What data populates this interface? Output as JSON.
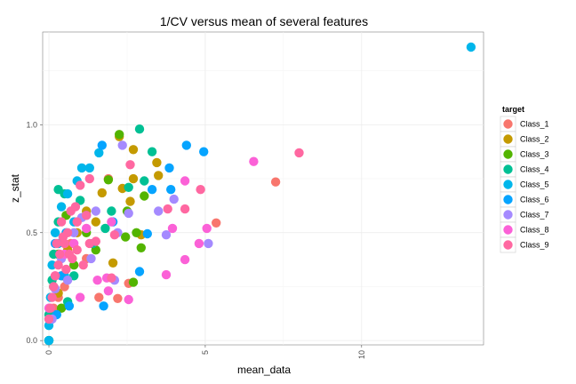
{
  "chart_data": {
    "type": "scatter",
    "title": "1/CV versus mean of several features",
    "xlabel": "mean_data",
    "ylabel": "z_stat",
    "xlim": [
      -0.2,
      13.9
    ],
    "ylim": [
      -0.02,
      1.43
    ],
    "x_ticks": [
      0,
      5,
      10
    ],
    "x_tick_labels": [
      "0",
      "5",
      "10"
    ],
    "y_ticks": [
      0.0,
      0.5,
      1.0
    ],
    "y_tick_labels": [
      "0.0",
      "0.5",
      "1.0"
    ],
    "grid": true,
    "legend_title": "target",
    "legend_position": "right",
    "series": [
      {
        "name": "Class_1",
        "color": "#F8766D",
        "points": [
          [
            7.25,
            0.735
          ],
          [
            5.35,
            0.545
          ],
          [
            2.55,
            0.265
          ],
          [
            1.6,
            0.2
          ],
          [
            2.2,
            0.195
          ],
          [
            0.4,
            0.3
          ],
          [
            0.7,
            0.45
          ],
          [
            1.2,
            0.38
          ],
          [
            0.3,
            0.2
          ],
          [
            0.9,
            0.55
          ],
          [
            0.15,
            0.15
          ],
          [
            1.9,
            0.75
          ],
          [
            0.5,
            0.25
          ]
        ]
      },
      {
        "name": "Class_2",
        "color": "#C49A00",
        "points": [
          [
            2.7,
            0.885
          ],
          [
            3.45,
            0.825
          ],
          [
            3.5,
            0.765
          ],
          [
            2.7,
            0.75
          ],
          [
            2.35,
            0.705
          ],
          [
            2.6,
            0.645
          ],
          [
            2.25,
            0.945
          ],
          [
            1.7,
            0.685
          ],
          [
            1.2,
            0.6
          ],
          [
            0.6,
            0.42
          ],
          [
            0.3,
            0.22
          ],
          [
            0.9,
            0.5
          ],
          [
            2.05,
            0.36
          ],
          [
            1.5,
            0.55
          ],
          [
            0.45,
            0.3
          ],
          [
            0.1,
            0.12
          ],
          [
            2.95,
            0.49
          ]
        ]
      },
      {
        "name": "Class_3",
        "color": "#53B400",
        "points": [
          [
            2.25,
            0.955
          ],
          [
            1.9,
            0.745
          ],
          [
            2.5,
            0.6
          ],
          [
            3.05,
            0.67
          ],
          [
            2.8,
            0.5
          ],
          [
            2.95,
            0.43
          ],
          [
            2.7,
            0.27
          ],
          [
            1.2,
            0.5
          ],
          [
            0.55,
            0.58
          ],
          [
            0.3,
            0.4
          ],
          [
            0.15,
            0.25
          ],
          [
            0.05,
            0.1
          ],
          [
            0.0,
            0.0
          ],
          [
            0.8,
            0.35
          ],
          [
            0.4,
            0.15
          ],
          [
            2.45,
            0.48
          ],
          [
            1.5,
            0.42
          ]
        ]
      },
      {
        "name": "Class_4",
        "color": "#00C094",
        "points": [
          [
            2.9,
            0.98
          ],
          [
            3.3,
            0.875
          ],
          [
            2.55,
            0.71
          ],
          [
            3.05,
            0.74
          ],
          [
            1.8,
            0.52
          ],
          [
            1.0,
            0.65
          ],
          [
            0.5,
            0.68
          ],
          [
            0.3,
            0.55
          ],
          [
            0.15,
            0.4
          ],
          [
            0.1,
            0.28
          ],
          [
            0.0,
            0.12
          ],
          [
            0.0,
            0.0
          ],
          [
            0.6,
            0.18
          ],
          [
            1.4,
            0.45
          ],
          [
            2.0,
            0.6
          ],
          [
            0.3,
            0.7
          ],
          [
            0.8,
            0.3
          ]
        ]
      },
      {
        "name": "Class_5",
        "color": "#00B6EB",
        "points": [
          [
            13.5,
            1.36
          ],
          [
            1.6,
            0.87
          ],
          [
            1.05,
            0.8
          ],
          [
            1.3,
            0.8
          ],
          [
            0.9,
            0.74
          ],
          [
            0.6,
            0.68
          ],
          [
            0.4,
            0.62
          ],
          [
            0.2,
            0.5
          ],
          [
            0.1,
            0.35
          ],
          [
            0.05,
            0.2
          ],
          [
            0.0,
            0.07
          ],
          [
            0.0,
            0.0
          ],
          [
            0.3,
            0.45
          ],
          [
            0.8,
            0.55
          ],
          [
            0.5,
            0.3
          ]
        ]
      },
      {
        "name": "Class_6",
        "color": "#06A4FF",
        "points": [
          [
            4.4,
            0.905
          ],
          [
            4.95,
            0.875
          ],
          [
            1.7,
            0.905
          ],
          [
            3.3,
            0.7
          ],
          [
            3.9,
            0.7
          ],
          [
            3.85,
            0.8
          ],
          [
            3.15,
            0.495
          ],
          [
            2.9,
            0.32
          ],
          [
            1.75,
            0.16
          ],
          [
            0.65,
            0.16
          ],
          [
            0.25,
            0.12
          ],
          [
            0.2,
            0.45
          ],
          [
            0.55,
            0.5
          ],
          [
            1.2,
            0.58
          ],
          [
            2.05,
            0.55
          ],
          [
            0.4,
            0.3
          ]
        ]
      },
      {
        "name": "Class_7",
        "color": "#A58AFF",
        "points": [
          [
            2.35,
            0.905
          ],
          [
            5.1,
            0.45
          ],
          [
            3.5,
            0.6
          ],
          [
            4.0,
            0.655
          ],
          [
            3.75,
            0.49
          ],
          [
            2.2,
            0.5
          ],
          [
            2.1,
            0.28
          ],
          [
            1.5,
            0.6
          ],
          [
            1.05,
            0.57
          ],
          [
            0.8,
            0.5
          ],
          [
            0.4,
            0.38
          ],
          [
            0.2,
            0.24
          ],
          [
            0.1,
            0.1
          ],
          [
            0.6,
            0.28
          ],
          [
            1.35,
            0.38
          ],
          [
            2.55,
            0.59
          ]
        ]
      },
      {
        "name": "Class_8",
        "color": "#FB61D7",
        "points": [
          [
            6.55,
            0.83
          ],
          [
            4.35,
            0.74
          ],
          [
            3.95,
            0.52
          ],
          [
            5.05,
            0.52
          ],
          [
            4.8,
            0.45
          ],
          [
            4.35,
            0.375
          ],
          [
            3.75,
            0.305
          ],
          [
            2.55,
            0.19
          ],
          [
            1.9,
            0.23
          ],
          [
            1.85,
            0.29
          ],
          [
            1.55,
            0.28
          ],
          [
            1.0,
            0.2
          ],
          [
            0.5,
            0.4
          ],
          [
            0.8,
            0.45
          ],
          [
            1.2,
            0.52
          ],
          [
            2.0,
            0.55
          ],
          [
            0.2,
            0.3
          ],
          [
            0.0,
            0.15
          ]
        ]
      },
      {
        "name": "Class_9",
        "color": "#FF68A1",
        "points": [
          [
            8.0,
            0.87
          ],
          [
            4.85,
            0.7
          ],
          [
            4.35,
            0.61
          ],
          [
            3.8,
            0.61
          ],
          [
            2.6,
            0.815
          ],
          [
            1.3,
            0.75
          ],
          [
            1.0,
            0.72
          ],
          [
            2.1,
            0.49
          ],
          [
            2.0,
            0.29
          ],
          [
            1.2,
            0.58
          ],
          [
            0.9,
            0.55
          ],
          [
            0.6,
            0.5
          ],
          [
            0.5,
            0.45
          ],
          [
            0.35,
            0.4
          ],
          [
            0.3,
            0.35
          ],
          [
            0.2,
            0.3
          ],
          [
            0.15,
            0.25
          ],
          [
            0.1,
            0.2
          ],
          [
            0.05,
            0.15
          ],
          [
            0.0,
            0.1
          ],
          [
            0.7,
            0.6
          ],
          [
            0.9,
            0.42
          ],
          [
            1.1,
            0.35
          ],
          [
            1.5,
            0.46
          ],
          [
            0.4,
            0.55
          ],
          [
            0.75,
            0.38
          ],
          [
            0.55,
            0.33
          ],
          [
            0.25,
            0.45
          ],
          [
            1.3,
            0.45
          ],
          [
            0.85,
            0.62
          ],
          [
            0.45,
            0.48
          ],
          [
            0.65,
            0.4
          ]
        ]
      }
    ]
  }
}
